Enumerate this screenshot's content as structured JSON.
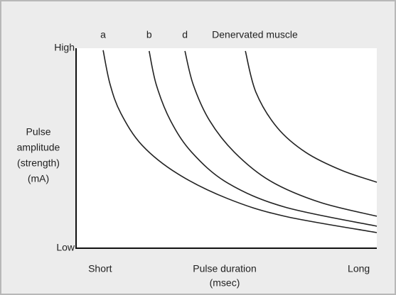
{
  "chart_data": {
    "type": "line",
    "ylabel": [
      "Pulse",
      "amplitude",
      "(strength)",
      "(mA)"
    ],
    "xlabel": [
      "Pulse duration",
      "(msec)"
    ],
    "xlim": [
      0,
      100
    ],
    "ylim": [
      0,
      100
    ],
    "xticks": [
      {
        "value": 8,
        "label": "Short"
      },
      {
        "value": 94,
        "label": "Long"
      }
    ],
    "yticks": [
      {
        "value": 0,
        "label": "Low"
      },
      {
        "value": 100,
        "label": "High"
      }
    ],
    "grid": false,
    "series": [
      {
        "name": "a",
        "color": "#222222",
        "x": [
          9,
          11.3,
          14.9,
          22,
          33.8,
          50.4,
          69.3,
          100
        ],
        "values": [
          99,
          82,
          67.4,
          51.4,
          37.2,
          24.8,
          16,
          7.8
        ]
      },
      {
        "name": "b",
        "color": "#222222",
        "x": [
          24.3,
          26.7,
          31.4,
          38.5,
          50.4,
          69.3,
          100
        ],
        "values": [
          98.6,
          81.6,
          63.8,
          47.9,
          32.6,
          20.6,
          11
        ]
      },
      {
        "name": "d",
        "color": "#222222",
        "x": [
          36.2,
          39,
          44.4,
          52.7,
          64.5,
          81,
          100
        ],
        "values": [
          98.6,
          81.6,
          63.8,
          47.9,
          33.7,
          23,
          16
        ]
      },
      {
        "name": "Denervated muscle",
        "color": "#222222",
        "x": [
          56.3,
          59.8,
          66.9,
          76.4,
          88.2,
          100
        ],
        "values": [
          98.6,
          78,
          60.3,
          47.9,
          39,
          33
        ]
      }
    ]
  }
}
